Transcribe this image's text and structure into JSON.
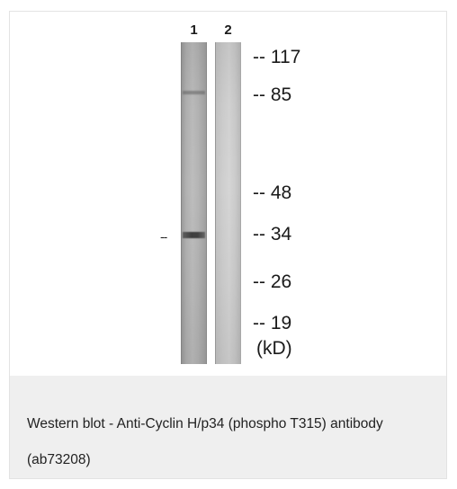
{
  "figure": {
    "lanes": [
      {
        "number": "1"
      },
      {
        "number": "2"
      }
    ],
    "band_pointer": "--",
    "markers": [
      {
        "label": "-- 117"
      },
      {
        "label": "-- 85"
      },
      {
        "label": "-- 48"
      },
      {
        "label": "-- 34"
      },
      {
        "label": "-- 26"
      },
      {
        "label": "-- 19"
      }
    ],
    "unit": "(kD)"
  },
  "caption": {
    "text": "Western blot - Anti-Cyclin H/p34 (phospho T315) antibody (ab73208)"
  }
}
